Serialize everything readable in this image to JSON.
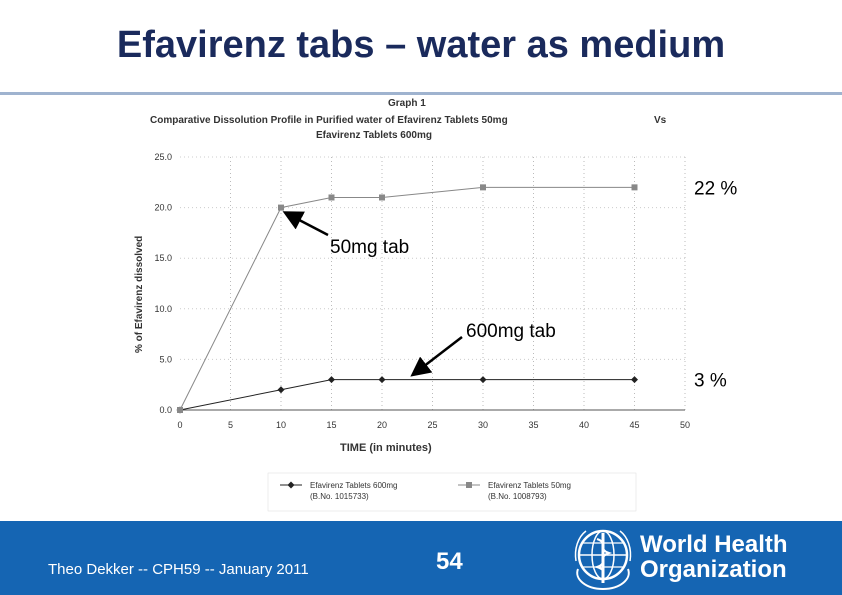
{
  "slide": {
    "title": "Efavirenz tabs – water as medium"
  },
  "chart_data": {
    "type": "line",
    "graph_label": "Graph 1",
    "title_line1": "Comparative Dissolution Profile in Purified water of  Efavirenz Tablets 50mg",
    "title_vs": "Vs",
    "title_line2": "Efavirenz Tablets 600mg",
    "xlabel": "TIME (in minutes)",
    "ylabel": "% of Efavirenz dissolved",
    "xlim": [
      0,
      50
    ],
    "ylim": [
      0,
      25
    ],
    "x_ticks": [
      "0",
      "5",
      "10",
      "15",
      "20",
      "25",
      "30",
      "35",
      "40",
      "45",
      "50"
    ],
    "y_ticks": [
      "0.0",
      "5.0",
      "10.0",
      "15.0",
      "20.0",
      "25.0"
    ],
    "series": [
      {
        "name": "Efavirenz Tablets 600mg",
        "batch": "(B.No. 1015733)",
        "marker": "diamond",
        "color": "#222222",
        "x": [
          0,
          10,
          15,
          20,
          30,
          45
        ],
        "y": [
          0,
          2,
          3,
          3,
          3,
          3
        ]
      },
      {
        "name": "Efavirenz Tablets 50mg",
        "batch": "(B.No. 1008793)",
        "marker": "square",
        "color": "#888888",
        "x": [
          0,
          10,
          15,
          20,
          30,
          45
        ],
        "y": [
          0,
          20,
          21,
          21,
          22,
          22
        ]
      }
    ],
    "annotations": {
      "label_50": "50mg tab",
      "label_600": "600mg tab",
      "end_50": "22 %",
      "end_600": "3 %"
    }
  },
  "footer": {
    "author": "Theo Dekker   -- CPH59 -- January 2011",
    "page_number": "54",
    "org_line1": "World Health",
    "org_line2": "Organization"
  }
}
